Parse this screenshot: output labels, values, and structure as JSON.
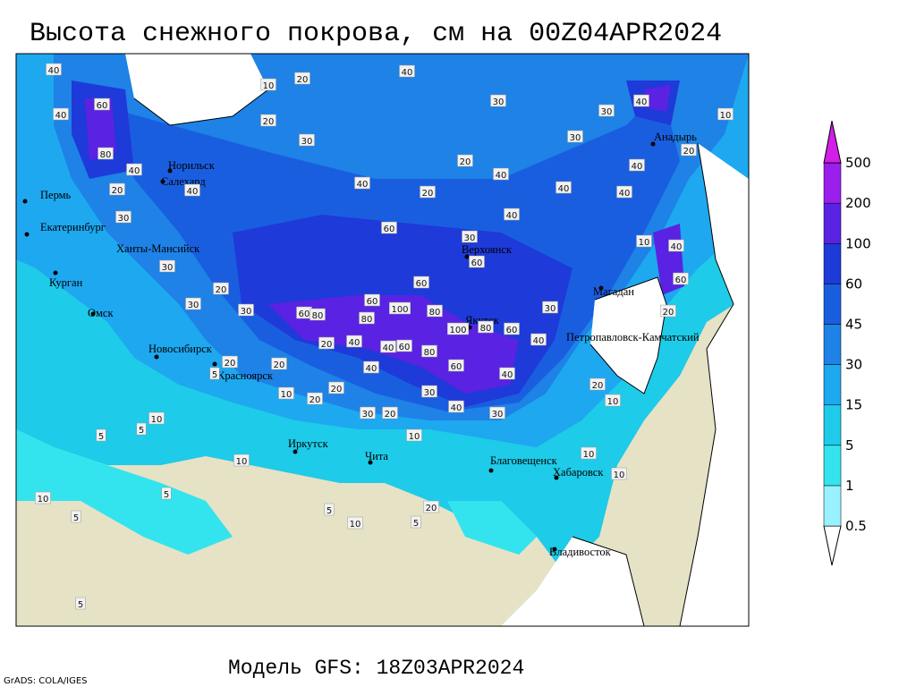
{
  "title": "Высота снежного покрова, см на 00Z04APR2024",
  "subtitle": "Модель GFS: 18Z03APR2024",
  "credit": "GrADS: COLA/IGES",
  "legend": {
    "levels": [
      0.5,
      1,
      5,
      15,
      30,
      45,
      60,
      100,
      200,
      500
    ],
    "colors": [
      "#99f0ff",
      "#33e4ee",
      "#1ecbe8",
      "#1ea8f0",
      "#1e82e6",
      "#1a5ee0",
      "#1e3ad8",
      "#5a22e2",
      "#9a1eec",
      "#d21ee8"
    ]
  },
  "cities": [
    "Пермь",
    "Екатеринбург",
    "Курган",
    "Омск",
    "Ханты-Мансийск",
    "Норильск",
    "Салехард",
    "Новосибирск",
    "Красноярск",
    "Иркутск",
    "Чита",
    "Благовещенск",
    "Хабаровск",
    "Владивосток",
    "Якутск",
    "Верхоянск",
    "Магадан",
    "Петропавловск-Камчатский",
    "Анадырь"
  ],
  "contour_labels": [
    40,
    40,
    60,
    80,
    40,
    20,
    40,
    30,
    30,
    20,
    30,
    30,
    10,
    20,
    20,
    30,
    40,
    30,
    20,
    40,
    40,
    20,
    60,
    40,
    40,
    40,
    40,
    30,
    30,
    40,
    10,
    20,
    60,
    60,
    60,
    60,
    80,
    80,
    100,
    80,
    100,
    80,
    60,
    40,
    40,
    60,
    80,
    60,
    40,
    40,
    30,
    40,
    40,
    20,
    20,
    20,
    5,
    10,
    20,
    20,
    30,
    20,
    10,
    30,
    10,
    10,
    10,
    10,
    5,
    5,
    10,
    5,
    5,
    10,
    5,
    10,
    20,
    5,
    5,
    30,
    20,
    60,
    20,
    40,
    10,
    30
  ]
}
